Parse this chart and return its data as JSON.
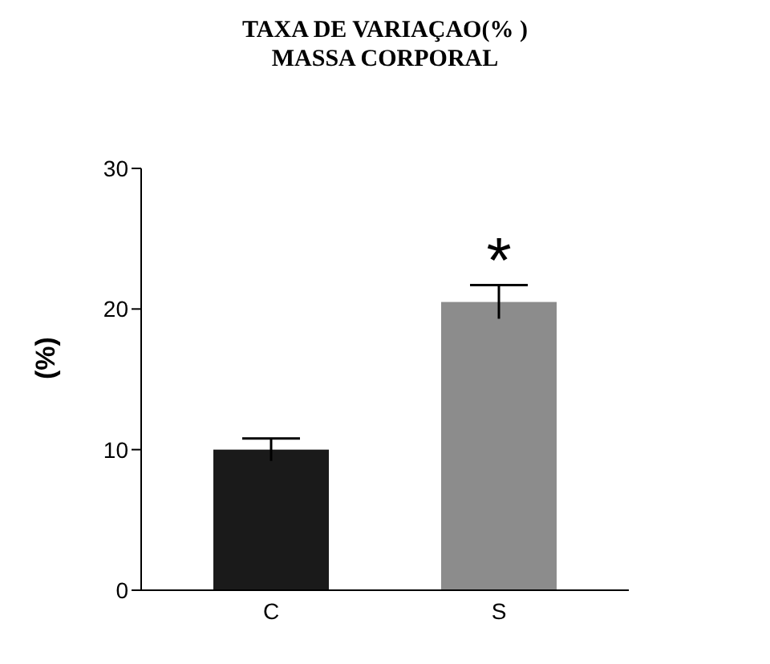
{
  "chart_data": {
    "type": "bar",
    "title": "TAXA DE VARIAÇAO(% )\nMASSA CORPORAL",
    "ylabel": "(%)",
    "categories": [
      "C",
      "S"
    ],
    "values": [
      10,
      20.5
    ],
    "errors": [
      0.8,
      1.2
    ],
    "colors": [
      "#1a1a1a",
      "#8c8c8c"
    ],
    "ylim": [
      0,
      30
    ],
    "yticks": [
      0,
      10,
      20,
      30
    ],
    "annotations": [
      "*"
    ],
    "grid": false
  }
}
